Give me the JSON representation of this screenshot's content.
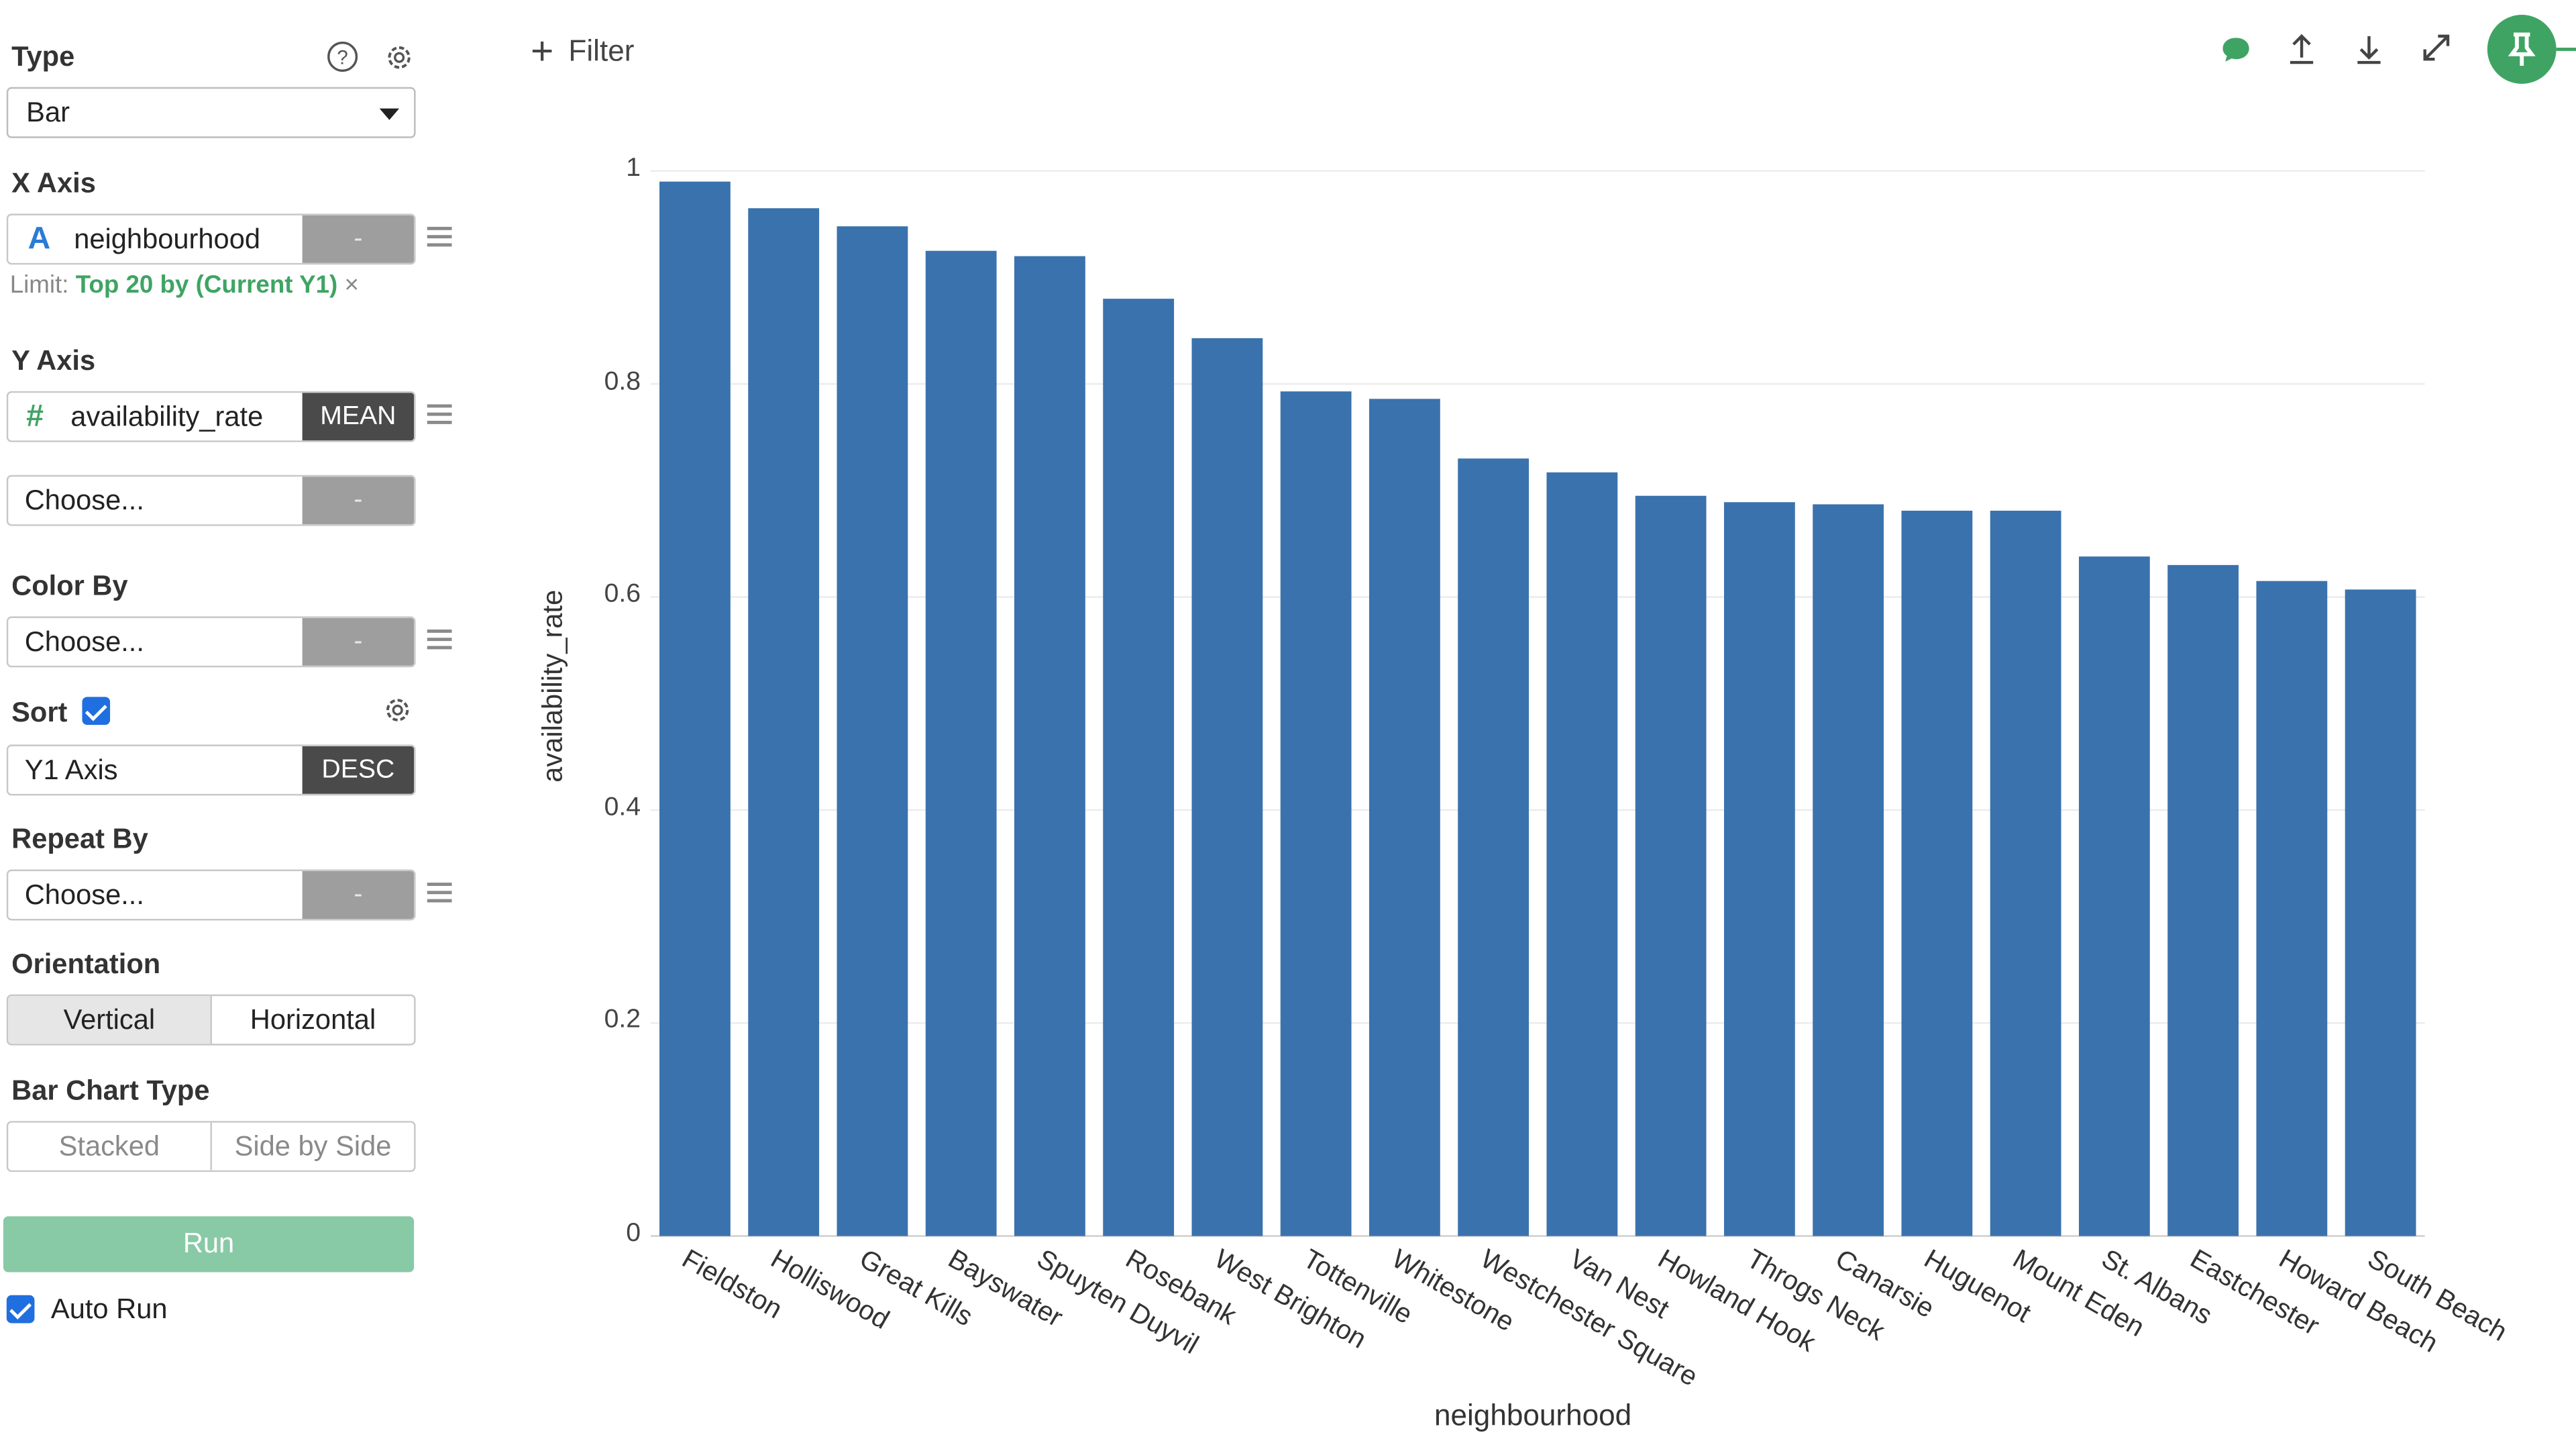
{
  "panel": {
    "type_label": "Type",
    "type_value": "Bar",
    "x_axis_label": "X Axis",
    "x_field": "neighbourhood",
    "x_field_icon": "A",
    "x_agg": "-",
    "limit_prefix": "Limit:",
    "limit_value": "Top 20 by (Current Y1)",
    "limit_remove": "×",
    "y_axis_label": "Y Axis",
    "y_field": "availability_rate",
    "y_field_icon": "#",
    "y_agg": "MEAN",
    "y2_placeholder": "Choose...",
    "y2_agg": "-",
    "color_by_label": "Color By",
    "color_by_placeholder": "Choose...",
    "color_by_agg": "-",
    "sort_label": "Sort",
    "sort_field": "Y1 Axis",
    "sort_dir": "DESC",
    "repeat_by_label": "Repeat By",
    "repeat_by_placeholder": "Choose...",
    "repeat_by_agg": "-",
    "orientation_label": "Orientation",
    "orientation_options": [
      "Vertical",
      "Horizontal"
    ],
    "bar_chart_type_label": "Bar Chart Type",
    "bar_chart_type_options": [
      "Stacked",
      "Side by Side"
    ],
    "run_label": "Run",
    "auto_run_label": "Auto Run"
  },
  "toolbar": {
    "filter_label": "Filter",
    "filter_icon": "+"
  },
  "colors": {
    "bar": "#3a72ad",
    "run_button": "#88c9a6",
    "pin_button": "#3fa463",
    "accent_green": "#3fa463",
    "checkbox": "#1f6fe0"
  },
  "chart_data": {
    "type": "bar",
    "xlabel": "neighbourhood",
    "ylabel": "availability_rate",
    "ylim": [
      0,
      1
    ],
    "yticks": [
      "0",
      "0.2",
      "0.4",
      "0.6",
      "0.8",
      "1"
    ],
    "grid": true,
    "categories": [
      "Fieldston",
      "Holliswood",
      "Great Kills",
      "Bayswater",
      "Spuyten Duyvil",
      "Rosebank",
      "West Brighton",
      "Tottenville",
      "Whitestone",
      "Westchester Square",
      "Van Nest",
      "Howland Hook",
      "Throgs Neck",
      "Canarsie",
      "Huguenot",
      "Mount Eden",
      "St. Albans",
      "Eastchester",
      "Howard Beach",
      "South Beach"
    ],
    "values": [
      0.99,
      0.965,
      0.948,
      0.925,
      0.92,
      0.88,
      0.843,
      0.793,
      0.786,
      0.73,
      0.717,
      0.695,
      0.689,
      0.687,
      0.681,
      0.681,
      0.638,
      0.63,
      0.615,
      0.607
    ]
  }
}
